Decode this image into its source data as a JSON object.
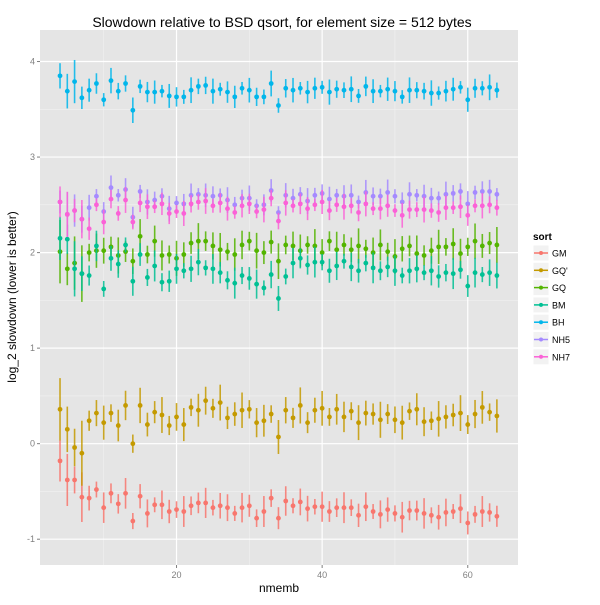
{
  "chart_data": {
    "type": "scatter",
    "title": "Slowdown relative to BSD qsort, for element size = 512 bytes",
    "xlabel": "nmemb",
    "ylabel": "log_2 slowdown (lower is better)",
    "xlim": [
      1.25,
      66.9
    ],
    "ylim": [
      -1.27,
      4.33
    ],
    "xticks": [
      20,
      40,
      60
    ],
    "xtick_labels": [
      "20",
      "40",
      "60"
    ],
    "yticks": [
      -1,
      0,
      1,
      2,
      3,
      4
    ],
    "ytick_labels": [
      "-1",
      "0",
      "1",
      "2",
      "3",
      "4"
    ],
    "grid": true,
    "legend": {
      "title": "sort",
      "placement": "right"
    },
    "x_start": 4,
    "series": [
      {
        "name": "GM",
        "color": "#F8766D",
        "err": 0.12,
        "values": [
          -0.18,
          -0.38,
          -0.38,
          -0.56,
          -0.57,
          -0.48,
          -0.67,
          -0.52,
          -0.63,
          -0.52,
          -0.81,
          -0.55,
          -0.73,
          -0.64,
          -0.64,
          -0.71,
          -0.69,
          -0.71,
          -0.65,
          -0.62,
          -0.62,
          -0.67,
          -0.65,
          -0.67,
          -0.73,
          -0.67,
          -0.65,
          -0.78,
          -0.71,
          -0.57,
          -0.78,
          -0.6,
          -0.65,
          -0.61,
          -0.68,
          -0.66,
          -0.66,
          -0.71,
          -0.67,
          -0.67,
          -0.67,
          -0.75,
          -0.66,
          -0.71,
          -0.74,
          -0.69,
          -0.73,
          -0.77,
          -0.7,
          -0.7,
          -0.73,
          -0.75,
          -0.77,
          -0.72,
          -0.71,
          -0.68,
          -0.83,
          -0.74,
          -0.71,
          -0.72,
          -0.76
        ]
      },
      {
        "name": "GQ'",
        "color": "#C49A00",
        "err": 0.14,
        "values": [
          0.36,
          0.15,
          -0.04,
          -0.1,
          0.24,
          0.32,
          0.22,
          0.32,
          0.19,
          0.4,
          0.0,
          0.4,
          0.2,
          0.33,
          0.3,
          0.19,
          0.28,
          0.2,
          0.38,
          0.35,
          0.45,
          0.37,
          0.43,
          0.27,
          0.31,
          0.35,
          0.36,
          0.22,
          0.24,
          0.31,
          0.07,
          0.35,
          0.27,
          0.4,
          0.22,
          0.35,
          0.37,
          0.28,
          0.36,
          0.28,
          0.34,
          0.22,
          0.32,
          0.31,
          0.25,
          0.31,
          0.25,
          0.22,
          0.34,
          0.36,
          0.23,
          0.24,
          0.26,
          0.28,
          0.3,
          0.32,
          0.2,
          0.31,
          0.38,
          0.33,
          0.29
        ]
      },
      {
        "name": "GQ",
        "color": "#53B400",
        "err": 0.14,
        "values": [
          2.01,
          1.83,
          1.89,
          1.78,
          2.0,
          2.02,
          2.02,
          2.06,
          1.97,
          2.01,
          1.91,
          2.17,
          1.98,
          2.12,
          1.97,
          1.98,
          1.94,
          1.98,
          2.1,
          2.12,
          2.12,
          2.07,
          2.03,
          2.01,
          1.98,
          2.08,
          2.12,
          2.02,
          2.0,
          2.11,
          1.91,
          2.08,
          2.07,
          2.02,
          2.08,
          2.07,
          2.0,
          2.12,
          2.03,
          2.08,
          2.03,
          2.07,
          2.04,
          2.0,
          2.08,
          2.01,
          1.96,
          2.04,
          2.07,
          1.99,
          1.97,
          2.02,
          2.06,
          2.06,
          2.09,
          1.99,
          2.06,
          2.12,
          2.07,
          2.1,
          2.08
        ]
      },
      {
        "name": "BM",
        "color": "#00C094",
        "err": 0.12,
        "values": [
          2.15,
          2.14,
          1.83,
          1.78,
          1.76,
          2.07,
          1.62,
          1.94,
          1.88,
          2.08,
          1.7,
          1.98,
          1.74,
          1.86,
          1.69,
          1.7,
          1.83,
          1.81,
          1.83,
          1.9,
          1.84,
          1.83,
          1.79,
          1.71,
          1.68,
          1.76,
          1.73,
          1.67,
          1.63,
          1.77,
          1.52,
          1.75,
          1.89,
          1.94,
          1.87,
          1.9,
          1.9,
          1.81,
          1.86,
          1.91,
          1.85,
          1.81,
          1.89,
          1.84,
          1.81,
          1.85,
          1.81,
          1.76,
          1.81,
          1.83,
          1.79,
          1.81,
          1.75,
          1.79,
          1.78,
          1.82,
          1.65,
          1.79,
          1.77,
          1.79,
          1.76
        ]
      },
      {
        "name": "BH",
        "color": "#00B6EB",
        "err": 0.1,
        "values": [
          3.85,
          3.69,
          3.79,
          3.62,
          3.7,
          3.77,
          3.6,
          3.8,
          3.69,
          3.77,
          3.49,
          3.74,
          3.68,
          3.68,
          3.69,
          3.64,
          3.63,
          3.63,
          3.7,
          3.74,
          3.75,
          3.69,
          3.71,
          3.68,
          3.63,
          3.72,
          3.7,
          3.63,
          3.63,
          3.77,
          3.54,
          3.72,
          3.7,
          3.72,
          3.68,
          3.72,
          3.73,
          3.68,
          3.71,
          3.7,
          3.71,
          3.64,
          3.74,
          3.69,
          3.69,
          3.71,
          3.69,
          3.63,
          3.7,
          3.7,
          3.69,
          3.67,
          3.67,
          3.69,
          3.71,
          3.73,
          3.6,
          3.72,
          3.72,
          3.73,
          3.7
        ]
      },
      {
        "name": "NH5",
        "color": "#A58AFF",
        "err": 0.1,
        "values": [
          2.53,
          2.4,
          2.44,
          2.35,
          2.47,
          2.59,
          2.43,
          2.68,
          2.6,
          2.66,
          2.37,
          2.64,
          2.53,
          2.55,
          2.59,
          2.46,
          2.52,
          2.51,
          2.6,
          2.61,
          2.6,
          2.59,
          2.6,
          2.55,
          2.5,
          2.57,
          2.57,
          2.49,
          2.5,
          2.65,
          2.42,
          2.6,
          2.57,
          2.61,
          2.54,
          2.6,
          2.62,
          2.56,
          2.6,
          2.59,
          2.6,
          2.53,
          2.63,
          2.59,
          2.59,
          2.63,
          2.59,
          2.53,
          2.61,
          2.6,
          2.59,
          2.57,
          2.57,
          2.61,
          2.62,
          2.64,
          2.51,
          2.63,
          2.64,
          2.64,
          2.61
        ]
      },
      {
        "name": "NH7",
        "color": "#FB61D7",
        "err": 0.1,
        "values": [
          2.53,
          2.4,
          2.44,
          2.35,
          2.25,
          2.5,
          2.32,
          2.56,
          2.41,
          2.55,
          2.32,
          2.52,
          2.48,
          2.48,
          2.51,
          2.41,
          2.43,
          2.41,
          2.51,
          2.53,
          2.54,
          2.49,
          2.52,
          2.46,
          2.42,
          2.49,
          2.51,
          2.43,
          2.45,
          2.57,
          2.33,
          2.52,
          2.49,
          2.51,
          2.46,
          2.5,
          2.53,
          2.44,
          2.5,
          2.48,
          2.49,
          2.42,
          2.51,
          2.46,
          2.46,
          2.49,
          2.44,
          2.39,
          2.45,
          2.45,
          2.45,
          2.44,
          2.42,
          2.47,
          2.47,
          2.48,
          2.39,
          2.49,
          2.49,
          2.5,
          2.47
        ]
      }
    ]
  }
}
